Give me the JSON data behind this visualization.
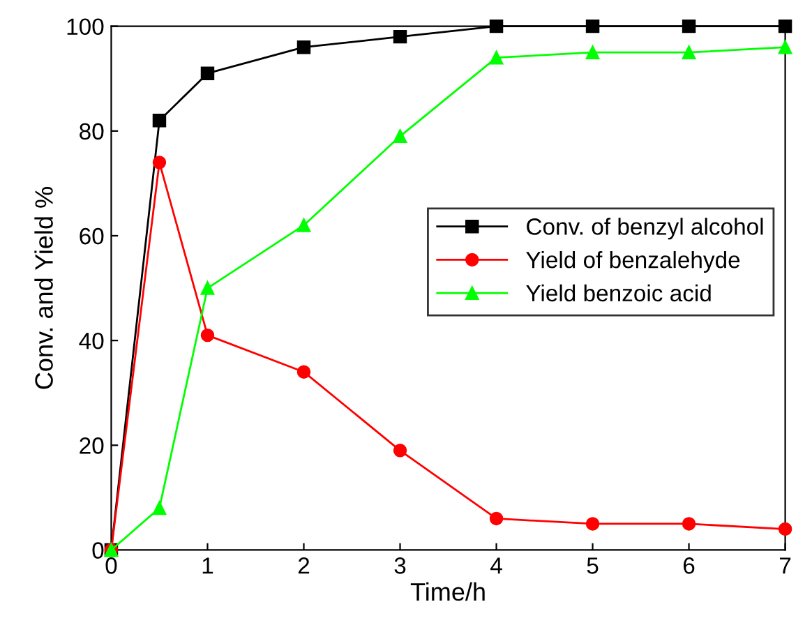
{
  "chart_data": {
    "type": "line",
    "xlabel": "Time/h",
    "ylabel": "Conv. and Yield %",
    "x": [
      0,
      0.5,
      1,
      2,
      3,
      4,
      5,
      6,
      7
    ],
    "xlim": [
      0,
      7
    ],
    "xticks": [
      0,
      1,
      2,
      3,
      4,
      5,
      6,
      7
    ],
    "ylim": [
      0,
      100
    ],
    "yticks": [
      0,
      20,
      40,
      60,
      80,
      100
    ],
    "grid": false,
    "legend": "right",
    "line_style": "solid",
    "series": [
      {
        "name": "Conv. of benzyl alcohol",
        "color": "#000000",
        "marker": "square",
        "values": [
          0,
          82,
          91,
          96,
          98,
          100,
          100,
          100,
          100
        ]
      },
      {
        "name": "Yield of benzalehyde",
        "color": "#ff0000",
        "marker": "circle",
        "values": [
          0,
          74,
          41,
          34,
          19,
          6,
          5,
          5,
          4
        ]
      },
      {
        "name": "Yield benzoic acid",
        "color": "#00ff00",
        "marker": "triangle",
        "values": [
          0,
          8,
          50,
          62,
          79,
          94,
          95,
          95,
          96
        ]
      }
    ]
  }
}
